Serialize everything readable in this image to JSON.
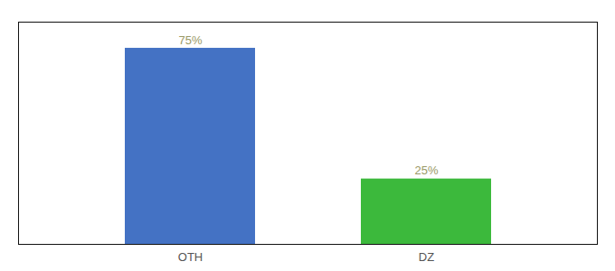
{
  "chart_data": {
    "type": "bar",
    "categories": [
      "OTH",
      "DZ"
    ],
    "values": [
      75,
      25
    ],
    "colors": [
      "#4472c4",
      "#3cb93c"
    ],
    "ylim": [
      0,
      85
    ],
    "yticks": [],
    "grid": false,
    "tick_labels": "x",
    "data_labels": true,
    "value_labels": [
      "75%",
      "25%"
    ]
  }
}
